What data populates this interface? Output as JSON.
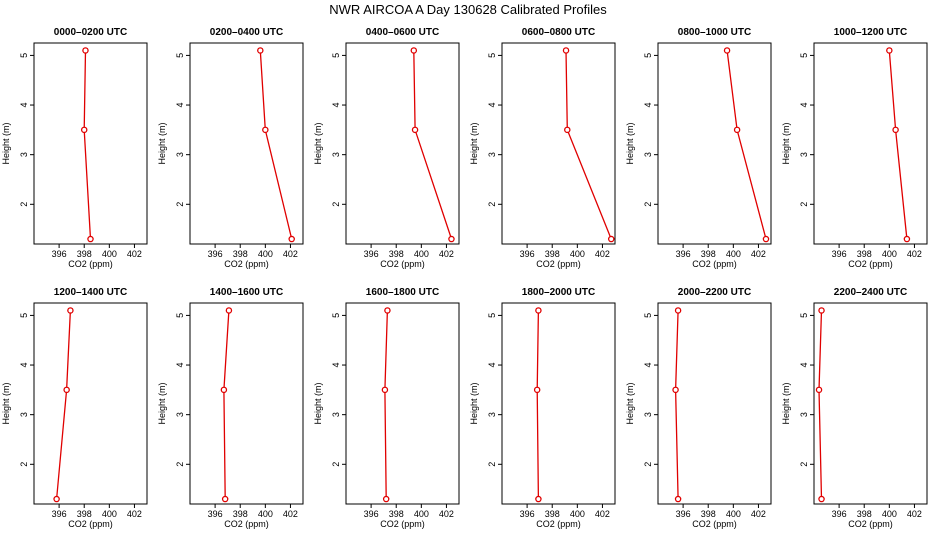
{
  "title": "NWR AIRCOA A  Day 130628  Calibrated Profiles",
  "colors": {
    "series": "#e00000",
    "axis": "#000000"
  },
  "chart_data": [
    {
      "type": "line",
      "title": "0000–0200 UTC",
      "xlabel": "CO2 (ppm)",
      "ylabel": "Height (m)",
      "xlim": [
        394,
        403
      ],
      "ylim": [
        1.2,
        5.25
      ],
      "xticks": [
        396,
        398,
        400,
        402
      ],
      "yticks": [
        2,
        3,
        4,
        5
      ],
      "x": [
        398.1,
        398.0,
        398.5
      ],
      "y": [
        5.1,
        3.5,
        1.3
      ]
    },
    {
      "type": "line",
      "title": "0200–0400 UTC",
      "xlabel": "CO2 (ppm)",
      "ylabel": "Height (m)",
      "xlim": [
        394,
        403
      ],
      "ylim": [
        1.2,
        5.25
      ],
      "xticks": [
        396,
        398,
        400,
        402
      ],
      "yticks": [
        2,
        3,
        4,
        5
      ],
      "x": [
        399.6,
        400.0,
        402.1
      ],
      "y": [
        5.1,
        3.5,
        1.3
      ]
    },
    {
      "type": "line",
      "title": "0400–0600 UTC",
      "xlabel": "CO2 (ppm)",
      "ylabel": "Height (m)",
      "xlim": [
        394,
        403
      ],
      "ylim": [
        1.2,
        5.25
      ],
      "xticks": [
        396,
        398,
        400,
        402
      ],
      "yticks": [
        2,
        3,
        4,
        5
      ],
      "x": [
        399.4,
        399.5,
        402.4
      ],
      "y": [
        5.1,
        3.5,
        1.3
      ]
    },
    {
      "type": "line",
      "title": "0600–0800 UTC",
      "xlabel": "CO2 (ppm)",
      "ylabel": "Height (m)",
      "xlim": [
        394,
        403
      ],
      "ylim": [
        1.2,
        5.25
      ],
      "xticks": [
        396,
        398,
        400,
        402
      ],
      "yticks": [
        2,
        3,
        4,
        5
      ],
      "x": [
        399.1,
        399.2,
        402.7
      ],
      "y": [
        5.1,
        3.5,
        1.3
      ]
    },
    {
      "type": "line",
      "title": "0800–1000 UTC",
      "xlabel": "CO2 (ppm)",
      "ylabel": "Height (m)",
      "xlim": [
        394,
        403
      ],
      "ylim": [
        1.2,
        5.25
      ],
      "xticks": [
        396,
        398,
        400,
        402
      ],
      "yticks": [
        2,
        3,
        4,
        5
      ],
      "x": [
        399.5,
        400.3,
        402.6
      ],
      "y": [
        5.1,
        3.5,
        1.3
      ]
    },
    {
      "type": "line",
      "title": "1000–1200 UTC",
      "xlabel": "CO2 (ppm)",
      "ylabel": "Height (m)",
      "xlim": [
        394,
        403
      ],
      "ylim": [
        1.2,
        5.25
      ],
      "xticks": [
        396,
        398,
        400,
        402
      ],
      "yticks": [
        2,
        3,
        4,
        5
      ],
      "x": [
        400.0,
        400.5,
        401.4
      ],
      "y": [
        5.1,
        3.5,
        1.3
      ]
    },
    {
      "type": "line",
      "title": "1200–1400 UTC",
      "xlabel": "CO2 (ppm)",
      "ylabel": "Height (m)",
      "xlim": [
        394,
        403
      ],
      "ylim": [
        1.2,
        5.25
      ],
      "xticks": [
        396,
        398,
        400,
        402
      ],
      "yticks": [
        2,
        3,
        4,
        5
      ],
      "x": [
        396.9,
        396.6,
        395.8
      ],
      "y": [
        5.1,
        3.5,
        1.3
      ]
    },
    {
      "type": "line",
      "title": "1400–1600 UTC",
      "xlabel": "CO2 (ppm)",
      "ylabel": "Height (m)",
      "xlim": [
        394,
        403
      ],
      "ylim": [
        1.2,
        5.25
      ],
      "xticks": [
        396,
        398,
        400,
        402
      ],
      "yticks": [
        2,
        3,
        4,
        5
      ],
      "x": [
        397.1,
        396.7,
        396.8
      ],
      "y": [
        5.1,
        3.5,
        1.3
      ]
    },
    {
      "type": "line",
      "title": "1600–1800 UTC",
      "xlabel": "CO2 (ppm)",
      "ylabel": "Height (m)",
      "xlim": [
        394,
        403
      ],
      "ylim": [
        1.2,
        5.25
      ],
      "xticks": [
        396,
        398,
        400,
        402
      ],
      "yticks": [
        2,
        3,
        4,
        5
      ],
      "x": [
        397.3,
        397.1,
        397.2
      ],
      "y": [
        5.1,
        3.5,
        1.3
      ]
    },
    {
      "type": "line",
      "title": "1800–2000 UTC",
      "xlabel": "CO2 (ppm)",
      "ylabel": "Height (m)",
      "xlim": [
        394,
        403
      ],
      "ylim": [
        1.2,
        5.25
      ],
      "xticks": [
        396,
        398,
        400,
        402
      ],
      "yticks": [
        2,
        3,
        4,
        5
      ],
      "x": [
        396.9,
        396.8,
        396.9
      ],
      "y": [
        5.1,
        3.5,
        1.3
      ]
    },
    {
      "type": "line",
      "title": "2000–2200 UTC",
      "xlabel": "CO2 (ppm)",
      "ylabel": "Height (m)",
      "xlim": [
        394,
        403
      ],
      "ylim": [
        1.2,
        5.25
      ],
      "xticks": [
        396,
        398,
        400,
        402
      ],
      "yticks": [
        2,
        3,
        4,
        5
      ],
      "x": [
        395.6,
        395.4,
        395.6
      ],
      "y": [
        5.1,
        3.5,
        1.3
      ]
    },
    {
      "type": "line",
      "title": "2200–2400 UTC",
      "xlabel": "CO2 (ppm)",
      "ylabel": "Height (m)",
      "xlim": [
        394,
        403
      ],
      "ylim": [
        1.2,
        5.25
      ],
      "xticks": [
        396,
        398,
        400,
        402
      ],
      "yticks": [
        2,
        3,
        4,
        5
      ],
      "x": [
        394.6,
        394.4,
        394.6
      ],
      "y": [
        5.1,
        3.5,
        1.3
      ]
    }
  ]
}
